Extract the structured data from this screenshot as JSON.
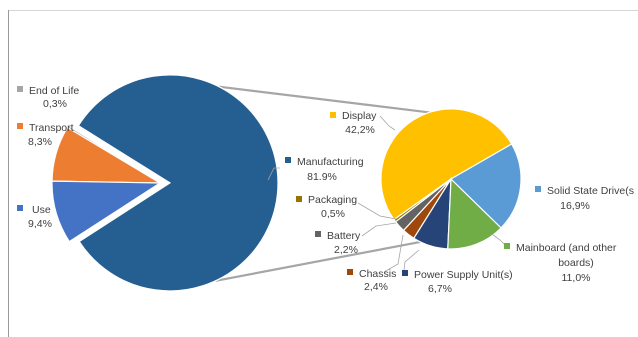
{
  "chart_data": {
    "type": "bar-of-pie",
    "title": "",
    "main_pie": {
      "slices": [
        {
          "label": "Manufacturing",
          "value": 81.9,
          "display": "81.9%",
          "color": "#255e91"
        },
        {
          "label": "Use",
          "value": 9.4,
          "display": "9,4%",
          "color": "#4472c4"
        },
        {
          "label": "Transport",
          "value": 8.3,
          "display": "8,3%",
          "color": "#ed7d31"
        },
        {
          "label": "End of Life",
          "value": 0.3,
          "display": "0,3%",
          "color": "#a5a5a5"
        }
      ],
      "exploded_slice": "Manufacturing"
    },
    "secondary_pie": {
      "parent": "Manufacturing",
      "slices": [
        {
          "label": "Display",
          "value": 42.2,
          "display": "42,2%",
          "color": "#ffc000"
        },
        {
          "label": "Solid State Drive(s",
          "value": 16.9,
          "display": "16,9%",
          "color": "#5b9bd5"
        },
        {
          "label": "Mainboard (and other boards)",
          "value": 11.0,
          "display": "11,0%",
          "color": "#70ad47"
        },
        {
          "label": "Power Supply Unit(s)",
          "value": 6.7,
          "display": "6,7%",
          "color": "#264478"
        },
        {
          "label": "Chassis",
          "value": 2.4,
          "display": "2,4%",
          "color": "#9e480e"
        },
        {
          "label": "Battery",
          "value": 2.2,
          "display": "2,2%",
          "color": "#636363"
        },
        {
          "label": "Packaging",
          "value": 0.5,
          "display": "0,5%",
          "color": "#997300"
        }
      ]
    },
    "legend": "none",
    "grid": false
  }
}
